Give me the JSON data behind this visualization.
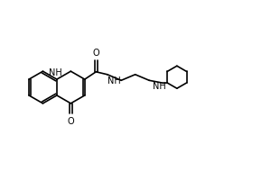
{
  "bg_color": "#ffffff",
  "line_color": "#000000",
  "lw": 1.2,
  "fs": 7,
  "fig_w": 3.0,
  "fig_h": 2.0,
  "dpi": 100,
  "xlim": [
    0,
    10
  ],
  "ylim": [
    0,
    6
  ],
  "bl": 0.72
}
